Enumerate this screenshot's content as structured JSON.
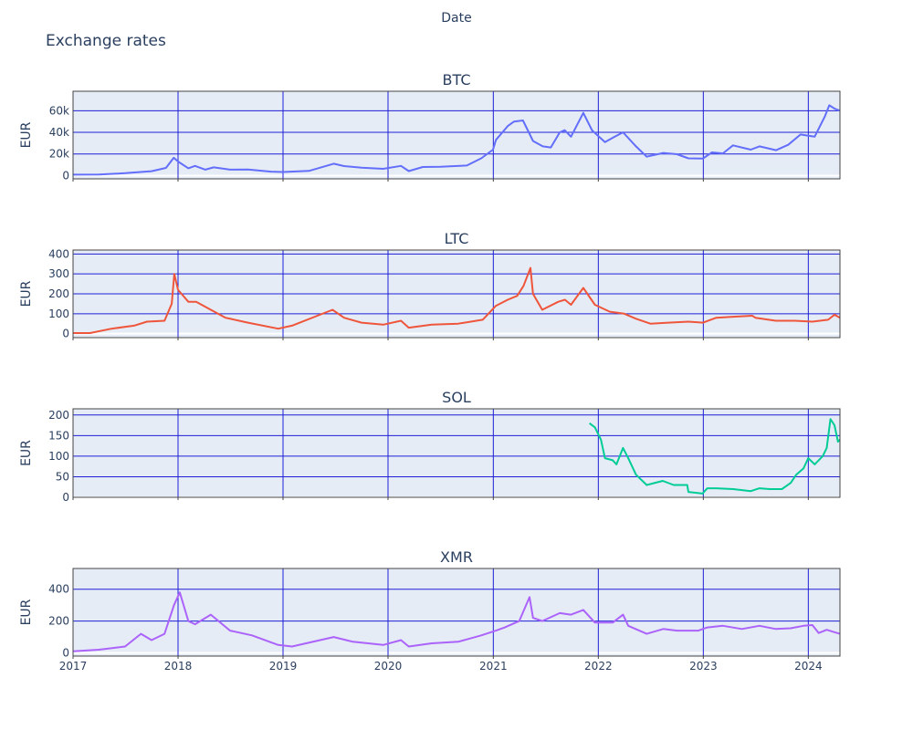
{
  "chart_data": {
    "type": "line",
    "title": "Exchange rates",
    "xlabel": "Date",
    "x_tick_labels": [
      "2017",
      "2018",
      "2019",
      "2020",
      "2021",
      "2022",
      "2023",
      "2024"
    ],
    "xlim": [
      "2017-01-01",
      "2024-04-20"
    ],
    "grid": true,
    "colors": {
      "plot_bg": "#e5ecf6",
      "grid": "#1f1fd6",
      "zero_line": "#ffffff",
      "axis_text": "#2a3f5f"
    },
    "panels": [
      {
        "name": "BTC",
        "ylabel": "EUR",
        "color": "#636efa",
        "ylim": [
          -3000,
          78000
        ],
        "yticks": [
          0,
          20000,
          40000,
          60000
        ],
        "ytick_labels": [
          "0",
          "20k",
          "40k",
          "60k"
        ],
        "x": [
          "2017-01-01",
          "2017-04-01",
          "2017-07-01",
          "2017-10-01",
          "2017-11-20",
          "2017-12-17",
          "2018-01-01",
          "2018-02-06",
          "2018-03-01",
          "2018-04-06",
          "2018-05-05",
          "2018-07-01",
          "2018-09-01",
          "2018-11-20",
          "2019-01-01",
          "2019-04-01",
          "2019-06-26",
          "2019-08-01",
          "2019-10-01",
          "2019-12-15",
          "2020-02-15",
          "2020-03-13",
          "2020-05-01",
          "2020-07-01",
          "2020-10-01",
          "2020-11-20",
          "2020-12-31",
          "2021-01-10",
          "2021-02-21",
          "2021-03-14",
          "2021-04-14",
          "2021-05-19",
          "2021-06-22",
          "2021-07-20",
          "2021-08-20",
          "2021-09-06",
          "2021-09-28",
          "2021-11-10",
          "2021-12-10",
          "2022-01-24",
          "2022-02-20",
          "2022-03-28",
          "2022-05-12",
          "2022-06-18",
          "2022-08-15",
          "2022-10-01",
          "2022-11-10",
          "2022-12-31",
          "2023-01-31",
          "2023-03-10",
          "2023-04-14",
          "2023-06-15",
          "2023-07-15",
          "2023-09-11",
          "2023-10-23",
          "2023-12-05",
          "2024-01-23",
          "2024-02-28",
          "2024-03-14",
          "2024-04-01",
          "2024-04-20"
        ],
        "y": [
          900,
          1000,
          2200,
          4100,
          7100,
          16500,
          13000,
          6800,
          9000,
          5500,
          7600,
          5500,
          5700,
          3700,
          3300,
          4300,
          11000,
          8800,
          7400,
          6300,
          9000,
          4200,
          8000,
          8100,
          9300,
          16000,
          24000,
          33000,
          46000,
          50000,
          51000,
          32000,
          27000,
          26000,
          40000,
          42000,
          36000,
          58000,
          42000,
          31000,
          35000,
          40000,
          27000,
          17500,
          21000,
          19800,
          16000,
          15800,
          21500,
          20500,
          28000,
          24000,
          27000,
          23500,
          28500,
          38000,
          36000,
          55000,
          65000,
          62000,
          60000
        ]
      },
      {
        "name": "LTC",
        "ylabel": "EUR",
        "color": "#ef553b",
        "ylim": [
          -20,
          420
        ],
        "yticks": [
          0,
          100,
          200,
          300,
          400
        ],
        "ytick_labels": [
          "0",
          "100",
          "200",
          "300",
          "400"
        ],
        "x": [
          "2017-01-01",
          "2017-03-01",
          "2017-05-15",
          "2017-08-01",
          "2017-09-15",
          "2017-11-15",
          "2017-12-10",
          "2017-12-19",
          "2018-01-01",
          "2018-02-06",
          "2018-03-05",
          "2018-04-25",
          "2018-06-15",
          "2018-09-01",
          "2018-12-15",
          "2019-02-01",
          "2019-06-22",
          "2019-08-01",
          "2019-10-01",
          "2019-12-15",
          "2020-02-15",
          "2020-03-13",
          "2020-06-01",
          "2020-09-01",
          "2020-11-25",
          "2021-01-10",
          "2021-02-20",
          "2021-03-25",
          "2021-04-16",
          "2021-05-10",
          "2021-05-19",
          "2021-06-20",
          "2021-08-15",
          "2021-09-07",
          "2021-09-28",
          "2021-11-10",
          "2021-12-20",
          "2022-02-10",
          "2022-04-01",
          "2022-05-12",
          "2022-07-01",
          "2022-09-01",
          "2022-11-10",
          "2022-12-31",
          "2023-02-15",
          "2023-04-15",
          "2023-06-20",
          "2023-07-01",
          "2023-09-10",
          "2023-11-15",
          "2024-01-15",
          "2024-03-10",
          "2024-04-01",
          "2024-04-20"
        ],
        "y": [
          3,
          3,
          25,
          40,
          60,
          65,
          150,
          300,
          220,
          160,
          160,
          120,
          80,
          55,
          25,
          40,
          120,
          80,
          55,
          45,
          65,
          30,
          45,
          50,
          70,
          140,
          170,
          190,
          240,
          330,
          200,
          120,
          160,
          170,
          145,
          230,
          145,
          110,
          100,
          75,
          50,
          55,
          60,
          55,
          80,
          85,
          90,
          80,
          65,
          65,
          60,
          70,
          95,
          80
        ]
      },
      {
        "name": "SOL",
        "ylabel": "EUR",
        "color": "#00cc96",
        "ylim": [
          0,
          215
        ],
        "yticks": [
          0,
          50,
          100,
          150,
          200
        ],
        "ytick_labels": [
          "0",
          "50",
          "100",
          "150",
          "200"
        ],
        "x": [
          "2021-12-01",
          "2021-12-20",
          "2022-01-10",
          "2022-01-24",
          "2022-02-20",
          "2022-03-05",
          "2022-03-28",
          "2022-04-15",
          "2022-05-12",
          "2022-06-18",
          "2022-08-13",
          "2022-09-20",
          "2022-11-06",
          "2022-11-10",
          "2022-12-29",
          "2023-01-15",
          "2023-02-15",
          "2023-04-15",
          "2023-06-15",
          "2023-07-15",
          "2023-08-20",
          "2023-10-01",
          "2023-11-01",
          "2023-11-20",
          "2023-12-15",
          "2024-01-01",
          "2024-01-23",
          "2024-02-20",
          "2024-03-05",
          "2024-03-18",
          "2024-04-01",
          "2024-04-13",
          "2024-04-20"
        ],
        "y": [
          180,
          170,
          140,
          95,
          90,
          80,
          120,
          95,
          55,
          30,
          40,
          30,
          30,
          13,
          9,
          22,
          22,
          20,
          15,
          22,
          20,
          20,
          35,
          55,
          70,
          95,
          80,
          100,
          120,
          190,
          175,
          135,
          140
        ]
      },
      {
        "name": "XMR",
        "ylabel": "EUR",
        "color": "#ab63fa",
        "ylim": [
          -20,
          530
        ],
        "yticks": [
          0,
          200,
          400
        ],
        "ytick_labels": [
          "0",
          "200",
          "400"
        ],
        "x": [
          "2017-01-01",
          "2017-04-01",
          "2017-07-01",
          "2017-08-25",
          "2017-10-01",
          "2017-11-15",
          "2017-12-18",
          "2018-01-07",
          "2018-02-06",
          "2018-03-01",
          "2018-04-25",
          "2018-07-01",
          "2018-09-15",
          "2018-12-15",
          "2019-02-01",
          "2019-06-26",
          "2019-09-01",
          "2019-12-15",
          "2020-02-15",
          "2020-03-13",
          "2020-06-01",
          "2020-09-01",
          "2020-11-20",
          "2021-01-10",
          "2021-02-10",
          "2021-04-01",
          "2021-05-07",
          "2021-05-19",
          "2021-06-20",
          "2021-08-20",
          "2021-09-28",
          "2021-11-10",
          "2021-12-20",
          "2022-02-20",
          "2022-03-28",
          "2022-04-15",
          "2022-06-18",
          "2022-08-15",
          "2022-10-01",
          "2022-12-15",
          "2023-01-15",
          "2023-03-10",
          "2023-05-15",
          "2023-07-15",
          "2023-09-10",
          "2023-11-01",
          "2023-12-15",
          "2024-01-15",
          "2024-02-06",
          "2024-03-05",
          "2024-04-01",
          "2024-04-20"
        ],
        "y": [
          10,
          20,
          40,
          120,
          80,
          120,
          300,
          380,
          200,
          180,
          240,
          140,
          110,
          50,
          40,
          100,
          70,
          50,
          80,
          40,
          60,
          70,
          110,
          140,
          160,
          200,
          350,
          220,
          200,
          250,
          240,
          270,
          190,
          190,
          240,
          170,
          120,
          150,
          140,
          140,
          160,
          170,
          150,
          170,
          150,
          155,
          170,
          175,
          125,
          145,
          130,
          120
        ]
      }
    ]
  }
}
